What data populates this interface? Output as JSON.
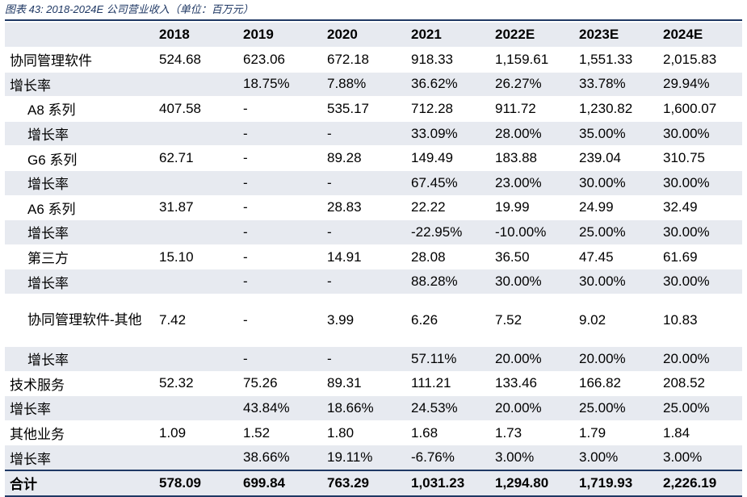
{
  "caption": "图表 43: 2018-2024E 公司营业收入（单位：百万元）",
  "header": [
    "",
    "2018",
    "2019",
    "2020",
    "2021",
    "2022E",
    "2023E",
    "2024E"
  ],
  "rows": [
    {
      "label": "协同管理软件",
      "indent": false,
      "values": [
        "524.68",
        "623.06",
        "672.18",
        "918.33",
        "1,159.61",
        "1,551.33",
        "2,015.83"
      ]
    },
    {
      "label": "增长率",
      "indent": false,
      "values": [
        "",
        "18.75%",
        "7.88%",
        "36.62%",
        "26.27%",
        "33.78%",
        "29.94%"
      ]
    },
    {
      "label": "A8 系列",
      "indent": true,
      "values": [
        "407.58",
        "-",
        "535.17",
        "712.28",
        "911.72",
        "1,230.82",
        "1,600.07"
      ]
    },
    {
      "label": "增长率",
      "indent": true,
      "values": [
        "",
        "-",
        "-",
        "33.09%",
        "28.00%",
        "35.00%",
        "30.00%"
      ]
    },
    {
      "label": "G6 系列",
      "indent": true,
      "values": [
        "62.71",
        "-",
        "89.28",
        "149.49",
        "183.88",
        "239.04",
        "310.75"
      ]
    },
    {
      "label": "增长率",
      "indent": true,
      "values": [
        "",
        "-",
        "-",
        "67.45%",
        "23.00%",
        "30.00%",
        "30.00%"
      ]
    },
    {
      "label": "A6 系列",
      "indent": true,
      "values": [
        "31.87",
        "-",
        "28.83",
        "22.22",
        "19.99",
        "24.99",
        "32.49"
      ]
    },
    {
      "label": "增长率",
      "indent": true,
      "values": [
        "",
        "-",
        "-",
        "-22.95%",
        "-10.00%",
        "25.00%",
        "30.00%"
      ]
    },
    {
      "label": "第三方",
      "indent": true,
      "values": [
        "15.10",
        "-",
        "14.91",
        "28.08",
        "36.50",
        "47.45",
        "61.69"
      ]
    },
    {
      "label": "增长率",
      "indent": true,
      "values": [
        "",
        "-",
        "-",
        "88.28%",
        "30.00%",
        "30.00%",
        "30.00%"
      ]
    },
    {
      "label": "协同管理软件-其他",
      "indent": true,
      "values": [
        "7.42",
        "-",
        "3.99",
        "6.26",
        "7.52",
        "9.02",
        "10.83"
      ]
    },
    {
      "label": "增长率",
      "indent": true,
      "values": [
        "",
        "-",
        "-",
        "57.11%",
        "20.00%",
        "20.00%",
        "20.00%"
      ]
    },
    {
      "label": "技术服务",
      "indent": false,
      "values": [
        "52.32",
        "75.26",
        "89.31",
        "111.21",
        "133.46",
        "166.82",
        "208.52"
      ]
    },
    {
      "label": "增长率",
      "indent": false,
      "values": [
        "",
        "43.84%",
        "18.66%",
        "24.53%",
        "20.00%",
        "25.00%",
        "25.00%"
      ]
    },
    {
      "label": "其他业务",
      "indent": false,
      "values": [
        "1.09",
        "1.52",
        "1.80",
        "1.68",
        "1.73",
        "1.79",
        "1.84"
      ]
    },
    {
      "label": "增长率",
      "indent": false,
      "values": [
        "",
        "38.66%",
        "19.11%",
        "-6.76%",
        "3.00%",
        "3.00%",
        "3.00%"
      ]
    }
  ],
  "total": {
    "label": "合计",
    "values": [
      "578.09",
      "699.84",
      "763.29",
      "1,031.23",
      "1,294.80",
      "1,719.93",
      "2,226.19"
    ]
  }
}
